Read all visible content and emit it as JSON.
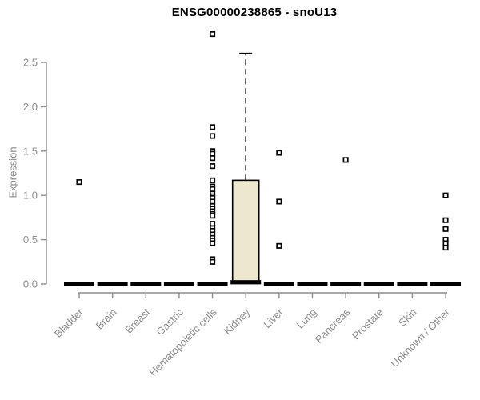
{
  "chart_data": {
    "type": "boxplot",
    "title": "ENSG00000238865 - snoU13",
    "ylabel": "Expression",
    "xlabel": "",
    "ylim": [
      0,
      2.85
    ],
    "yticks": [
      0,
      0.5,
      1,
      1.5,
      2,
      2.5
    ],
    "ytick_labels": [
      "0.0",
      "0.5",
      "1.0",
      "1.5",
      "2.0",
      "2.5"
    ],
    "grid": false,
    "legend": "none",
    "categories": [
      "Bladder",
      "Brain",
      "Breast",
      "Gastric",
      "Hematopoietic cells",
      "Kidney",
      "Liver",
      "Lung",
      "Pancreas",
      "Prostate",
      "Skin",
      "Unknown / Other"
    ],
    "boxes": [
      {
        "category": "Bladder",
        "q1": 0,
        "median": 0,
        "q3": 0,
        "whisker_low": 0,
        "whisker_high": 0,
        "outliers": [
          1.15
        ]
      },
      {
        "category": "Brain",
        "q1": 0,
        "median": 0,
        "q3": 0,
        "whisker_low": 0,
        "whisker_high": 0,
        "outliers": []
      },
      {
        "category": "Breast",
        "q1": 0,
        "median": 0,
        "q3": 0,
        "whisker_low": 0,
        "whisker_high": 0,
        "outliers": []
      },
      {
        "category": "Gastric",
        "q1": 0,
        "median": 0,
        "q3": 0,
        "whisker_low": 0,
        "whisker_high": 0,
        "outliers": []
      },
      {
        "category": "Hematopoietic cells",
        "q1": 0,
        "median": 0,
        "q3": 0,
        "whisker_low": 0,
        "whisker_high": 0,
        "outliers": [
          2.82,
          1.77,
          1.67,
          1.5,
          1.47,
          1.42,
          1.33,
          1.17,
          1.1,
          1.07,
          1.02,
          0.99,
          0.97,
          0.93,
          0.88,
          0.85,
          0.82,
          0.79,
          0.77,
          0.68,
          0.63,
          0.6,
          0.56,
          0.52,
          0.49,
          0.46,
          0.28,
          0.25
        ]
      },
      {
        "category": "Kidney",
        "q1": 0,
        "median": 0.02,
        "q3": 1.17,
        "whisker_low": 0,
        "whisker_high": 2.6,
        "outliers": []
      },
      {
        "category": "Liver",
        "q1": 0,
        "median": 0,
        "q3": 0,
        "whisker_low": 0,
        "whisker_high": 0,
        "outliers": [
          1.48,
          0.93,
          0.43
        ]
      },
      {
        "category": "Lung",
        "q1": 0,
        "median": 0,
        "q3": 0,
        "whisker_low": 0,
        "whisker_high": 0,
        "outliers": []
      },
      {
        "category": "Pancreas",
        "q1": 0,
        "median": 0,
        "q3": 0,
        "whisker_low": 0,
        "whisker_high": 0,
        "outliers": [
          1.4
        ]
      },
      {
        "category": "Prostate",
        "q1": 0,
        "median": 0,
        "q3": 0,
        "whisker_low": 0,
        "whisker_high": 0,
        "outliers": []
      },
      {
        "category": "Skin",
        "q1": 0,
        "median": 0,
        "q3": 0,
        "whisker_low": 0,
        "whisker_high": 0,
        "outliers": []
      },
      {
        "category": "Unknown / Other",
        "q1": 0,
        "median": 0,
        "q3": 0,
        "whisker_low": 0,
        "whisker_high": 0,
        "outliers": [
          1.0,
          0.72,
          0.62,
          0.5,
          0.46,
          0.41
        ]
      }
    ]
  },
  "colors": {
    "background": "#FFFFFF",
    "box_fill": "#ECE7CD",
    "box_border": "#000000",
    "marker": "#000000",
    "marker_fill": "#FFFFFF",
    "axis": "#8C8C8C",
    "tick_label": "#8C8C8C",
    "title": "#000000"
  }
}
